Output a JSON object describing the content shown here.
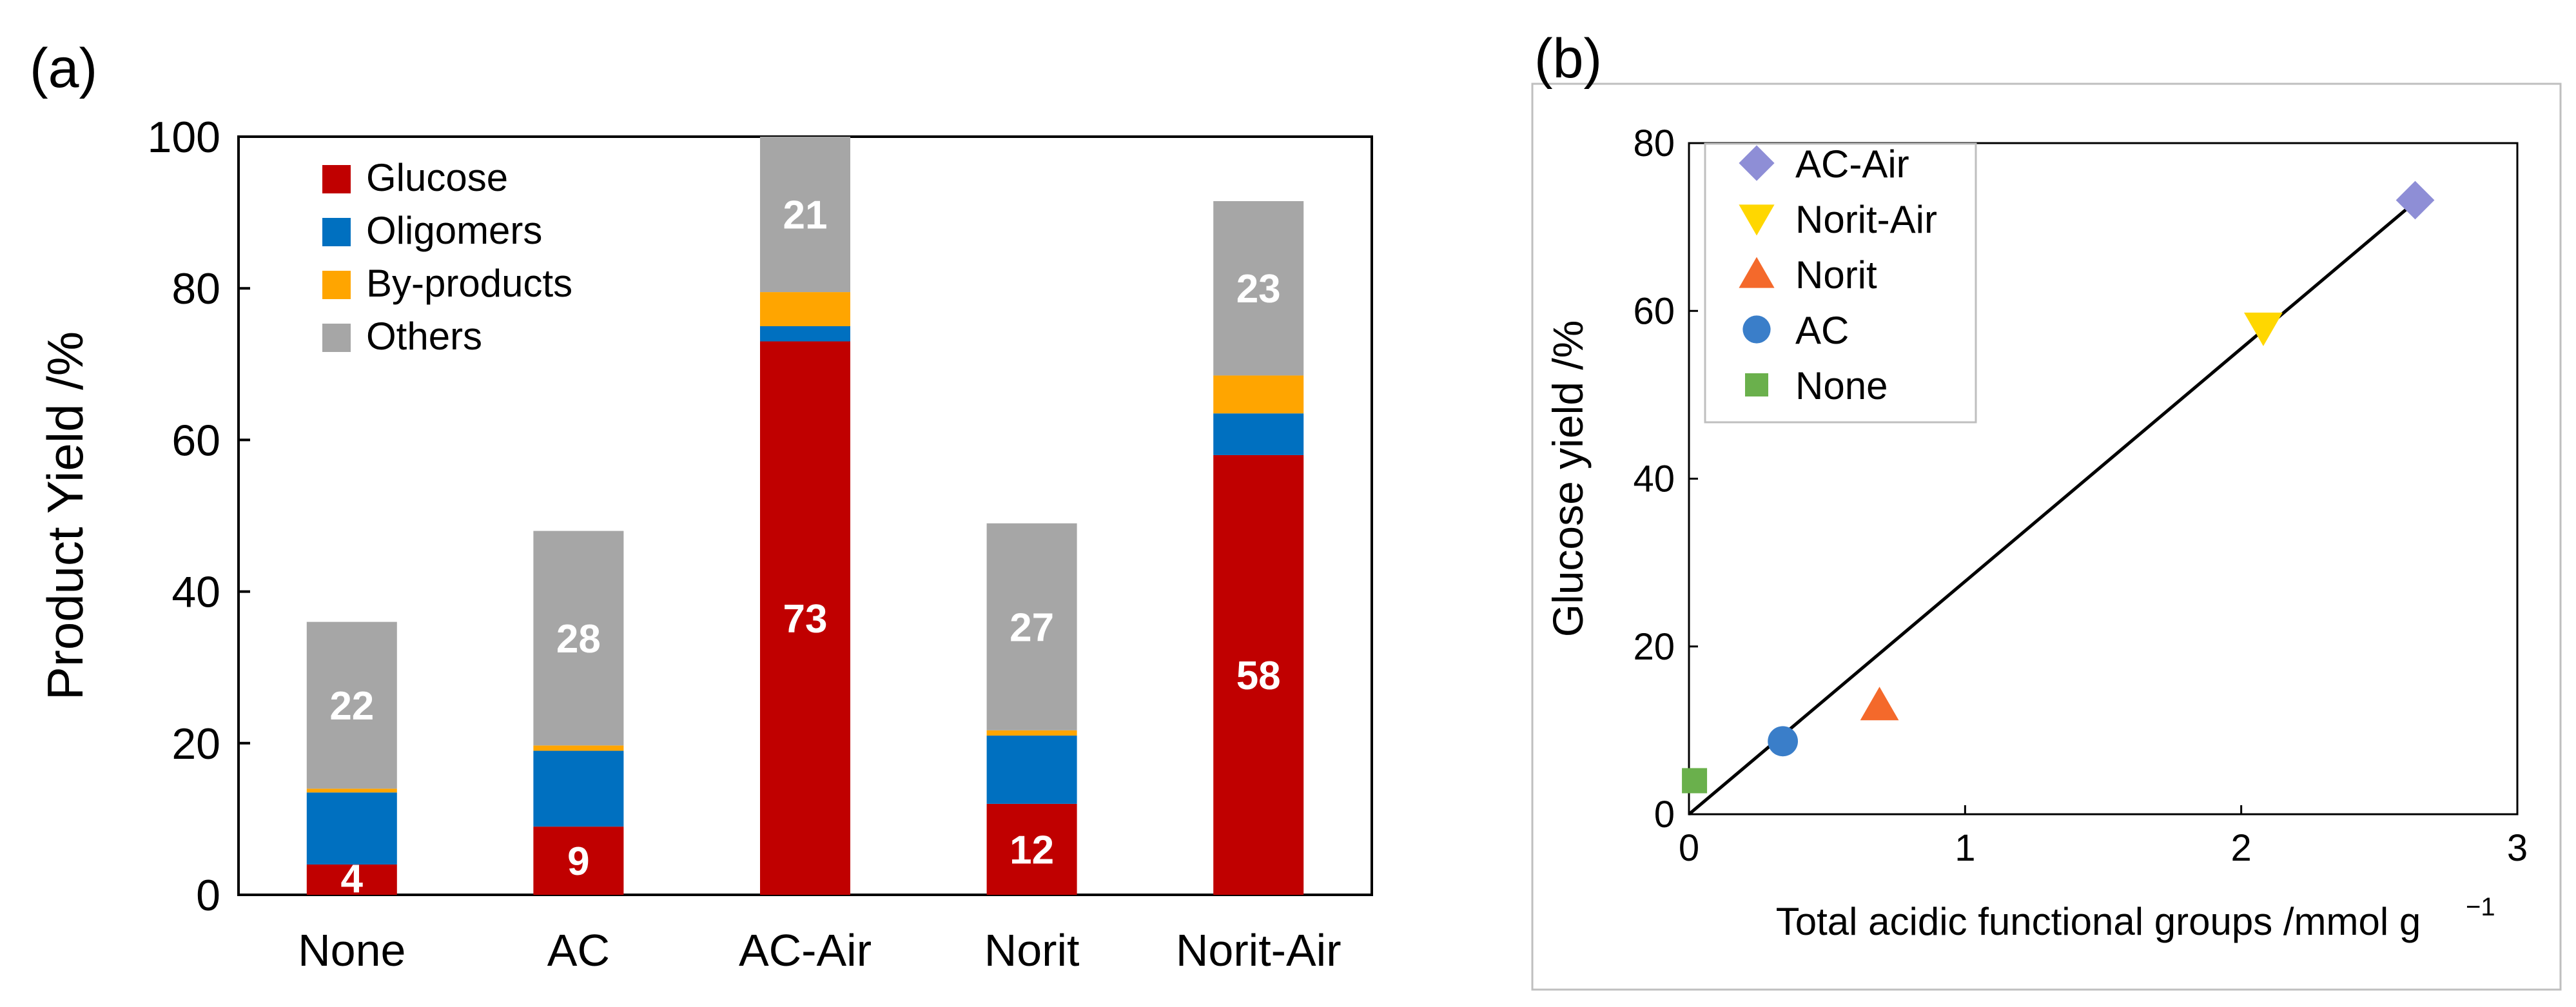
{
  "panels": {
    "a": {
      "label": "(a)"
    },
    "b": {
      "label": "(b)"
    }
  },
  "colors": {
    "glucose": "#c00000",
    "oligomers": "#0070c0",
    "byproducts": "#ffa500",
    "others": "#a6a6a6",
    "line": "#000000",
    "ac_air": "#8e8ed6",
    "norit_air": "#ffd700",
    "norit": "#f4692b",
    "ac": "#3a7ec9",
    "none": "#6ab04c"
  },
  "chart_data": [
    {
      "type": "bar",
      "stacked": true,
      "title": "",
      "xlabel": "",
      "ylabel": "Product Yield /%",
      "ylim": [
        0,
        100
      ],
      "yticks": [
        0,
        20,
        40,
        60,
        80,
        100
      ],
      "categories": [
        "None",
        "AC",
        "AC-Air",
        "Norit",
        "Norit-Air"
      ],
      "legend_position": "top-left",
      "series": [
        {
          "name": "Glucose",
          "color_key": "glucose",
          "values": [
            4,
            9,
            73,
            12,
            58
          ],
          "labels": [
            "4",
            "9",
            "73",
            "12",
            "58"
          ]
        },
        {
          "name": "Oligomers",
          "color_key": "oligomers",
          "values": [
            9.5,
            10,
            2,
            9,
            5.5
          ]
        },
        {
          "name": "By-products",
          "color_key": "byproducts",
          "values": [
            0.5,
            0.7,
            4.5,
            0.7,
            5
          ]
        },
        {
          "name": "Others",
          "color_key": "others",
          "values": [
            22,
            28.3,
            21,
            27.3,
            23
          ],
          "labels": [
            "22",
            "28",
            "21",
            "27",
            "23"
          ]
        }
      ]
    },
    {
      "type": "scatter",
      "title": "",
      "xlabel": "Total acidic functional groups /mmol g",
      "xlabel_sup": "−1",
      "ylabel": "Glucose yield /%",
      "xlim": [
        0,
        3
      ],
      "ylim": [
        0,
        80
      ],
      "xticks": [
        0,
        1,
        2,
        3
      ],
      "yticks": [
        0,
        20,
        40,
        60,
        80
      ],
      "legend_position": "top-left",
      "points": [
        {
          "name": "AC-Air",
          "x": 2.63,
          "y": 73.2,
          "marker": "diamond",
          "color_key": "ac_air"
        },
        {
          "name": "Norit-Air",
          "x": 2.08,
          "y": 58,
          "marker": "triangle-down",
          "color_key": "norit_air"
        },
        {
          "name": "Norit",
          "x": 0.69,
          "y": 13,
          "marker": "triangle-up",
          "color_key": "norit"
        },
        {
          "name": "AC",
          "x": 0.34,
          "y": 8.7,
          "marker": "circle",
          "color_key": "ac"
        },
        {
          "name": "None",
          "x": 0.02,
          "y": 4,
          "marker": "square",
          "color_key": "none"
        }
      ],
      "fit_line": {
        "x": [
          0,
          2.63
        ],
        "y": [
          0,
          73
        ]
      }
    }
  ]
}
